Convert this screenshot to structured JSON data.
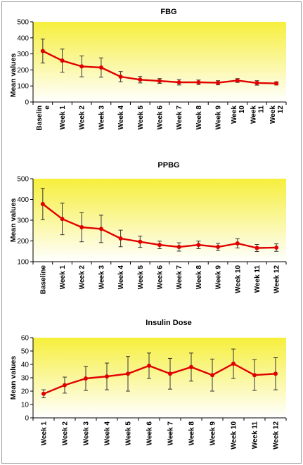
{
  "colors": {
    "line": "#e00000",
    "plot_bg_top": "#f6ef3c",
    "plot_bg_bottom": "#ffffff",
    "error_bar": "#333333",
    "axis": "#000000"
  },
  "chart_data": [
    {
      "type": "line",
      "title": "FBG",
      "ylabel": "Mean values",
      "xlabel": "",
      "ylim": [
        0,
        500
      ],
      "yticks": [
        0,
        100,
        200,
        300,
        400,
        500
      ],
      "grid": false,
      "categories": [
        "Baseline",
        "Week 1",
        "Week 2",
        "Week 3",
        "Week 4",
        "Week 5",
        "Week 6",
        "Week 7",
        "Week 8",
        "Week 9",
        "Week 10",
        "Week 11",
        "Week 12"
      ],
      "category_display": [
        [
          "Baselin",
          "e"
        ],
        [
          "Week 1"
        ],
        [
          "Week 2"
        ],
        [
          "Week 3"
        ],
        [
          "Week 4"
        ],
        [
          "Week 5"
        ],
        [
          "Week 6"
        ],
        [
          "Week 7"
        ],
        [
          "Week 8"
        ],
        [
          "Week 9"
        ],
        [
          "Week",
          "10"
        ],
        [
          "Week",
          "11"
        ],
        [
          "Week",
          "12"
        ]
      ],
      "series": [
        {
          "values": [
            318,
            258,
            222,
            215,
            158,
            139,
            131,
            123,
            123,
            120,
            134,
            119,
            116
          ],
          "error": [
            75,
            72,
            65,
            60,
            32,
            20,
            15,
            17,
            14,
            13,
            12,
            14,
            10
          ]
        }
      ]
    },
    {
      "type": "line",
      "title": "PPBG",
      "ylabel": "Mean values",
      "xlabel": "",
      "ylim": [
        100,
        500
      ],
      "yticks": [
        100,
        200,
        300,
        400,
        500
      ],
      "grid": false,
      "categories": [
        "Baseline",
        "Week 1",
        "Week 2",
        "Week 3",
        "Week 4",
        "Week 5",
        "Week 6",
        "Week 7",
        "Week 8",
        "Week 9",
        "Week 10",
        "Week 11",
        "Week 12"
      ],
      "category_display": [
        [
          "Baseline"
        ],
        [
          "Week 1"
        ],
        [
          "Week 2"
        ],
        [
          "Week 3"
        ],
        [
          "Week 4"
        ],
        [
          "Week 5"
        ],
        [
          "Week 6"
        ],
        [
          "Week 7"
        ],
        [
          "Week 8"
        ],
        [
          "Week 9"
        ],
        [
          "Week 10"
        ],
        [
          "Week 11"
        ],
        [
          "Week 12"
        ]
      ],
      "series": [
        {
          "values": [
            378,
            306,
            266,
            258,
            212,
            196,
            181,
            171,
            181,
            171,
            188,
            166,
            168
          ],
          "error": [
            76,
            76,
            70,
            66,
            40,
            27,
            18,
            20,
            18,
            17,
            22,
            17,
            18
          ]
        }
      ]
    },
    {
      "type": "line",
      "title": "Insulin Dose",
      "ylabel": "Mean values",
      "xlabel": "",
      "ylim": [
        0,
        60
      ],
      "yticks": [
        0,
        10,
        20,
        30,
        40,
        50,
        60
      ],
      "grid": false,
      "categories": [
        "Week 1",
        "Week 2",
        "Week 3",
        "Week 4",
        "Week 5",
        "Week 6",
        "Week 7",
        "Week 8",
        "Week 9",
        "Week 10",
        "Week 11",
        "Week 12"
      ],
      "category_display": [
        [
          "Week 1"
        ],
        [
          "Week 2"
        ],
        [
          "Week 3"
        ],
        [
          "Week 4"
        ],
        [
          "Week 5"
        ],
        [
          "Week 6"
        ],
        [
          "Week 7"
        ],
        [
          "Week 8"
        ],
        [
          "Week 9"
        ],
        [
          "Week 10"
        ],
        [
          "Week 11"
        ],
        [
          "Week 12"
        ]
      ],
      "series": [
        {
          "values": [
            18,
            24.5,
            29.5,
            31,
            33,
            39,
            33,
            38,
            32,
            40.5,
            32,
            33
          ],
          "error": [
            3,
            6,
            9,
            10,
            13,
            9.5,
            11.5,
            10.5,
            12,
            11,
            11.5,
            12
          ]
        }
      ]
    }
  ]
}
